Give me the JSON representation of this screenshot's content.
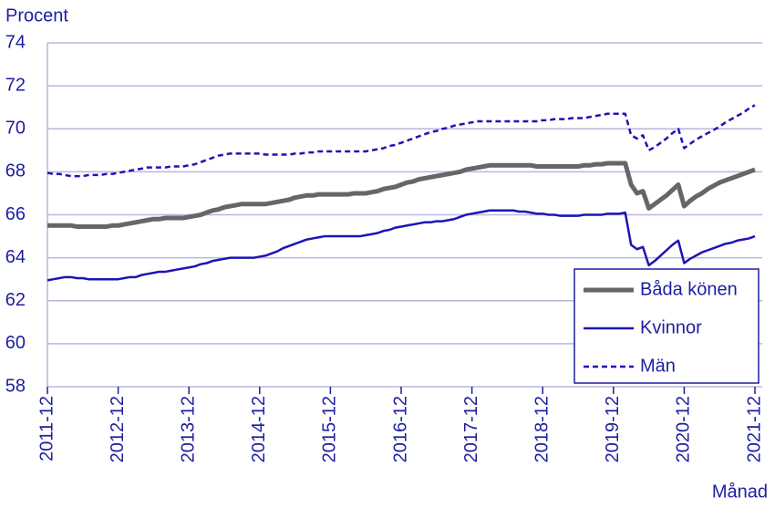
{
  "chart_data": {
    "type": "line",
    "y_label": "Procent",
    "x_label": "Månad",
    "categories": [
      "2011-12",
      null,
      null,
      null,
      null,
      null,
      null,
      null,
      null,
      null,
      null,
      null,
      "2012-12",
      null,
      null,
      null,
      null,
      null,
      null,
      null,
      null,
      null,
      null,
      null,
      "2013-12",
      null,
      null,
      null,
      null,
      null,
      null,
      null,
      null,
      null,
      null,
      null,
      "2014-12",
      null,
      null,
      null,
      null,
      null,
      null,
      null,
      null,
      null,
      null,
      null,
      "2015-12",
      null,
      null,
      null,
      null,
      null,
      null,
      null,
      null,
      null,
      null,
      null,
      "2016-12",
      null,
      null,
      null,
      null,
      null,
      null,
      null,
      null,
      null,
      null,
      null,
      "2017-12",
      null,
      null,
      null,
      null,
      null,
      null,
      null,
      null,
      null,
      null,
      null,
      "2018-12",
      null,
      null,
      null,
      null,
      null,
      null,
      null,
      null,
      null,
      null,
      null,
      "2019-12",
      null,
      null,
      null,
      null,
      null,
      null,
      null,
      null,
      null,
      null,
      null,
      "2020-12",
      null,
      null,
      null,
      null,
      null,
      null,
      null,
      null,
      null,
      null,
      null,
      "2021-12"
    ],
    "series": [
      {
        "name": "Båda könen",
        "color": "#666666",
        "width": 5,
        "dashed": false,
        "values": [
          65.5,
          65.5,
          65.5,
          65.5,
          65.5,
          65.45,
          65.45,
          65.45,
          65.45,
          65.45,
          65.45,
          65.5,
          65.5,
          65.55,
          65.6,
          65.65,
          65.7,
          65.75,
          65.8,
          65.8,
          65.85,
          65.85,
          65.85,
          65.85,
          65.9,
          65.95,
          66.0,
          66.1,
          66.2,
          66.25,
          66.35,
          66.4,
          66.45,
          66.5,
          66.5,
          66.5,
          66.5,
          66.5,
          66.55,
          66.6,
          66.65,
          66.7,
          66.8,
          66.85,
          66.9,
          66.9,
          66.95,
          66.95,
          66.95,
          66.95,
          66.95,
          66.95,
          67.0,
          67.0,
          67.0,
          67.05,
          67.1,
          67.2,
          67.25,
          67.3,
          67.4,
          67.5,
          67.55,
          67.65,
          67.7,
          67.75,
          67.8,
          67.85,
          67.9,
          67.95,
          68.0,
          68.1,
          68.15,
          68.2,
          68.25,
          68.3,
          68.3,
          68.3,
          68.3,
          68.3,
          68.3,
          68.3,
          68.3,
          68.25,
          68.25,
          68.25,
          68.25,
          68.25,
          68.25,
          68.25,
          68.25,
          68.3,
          68.3,
          68.35,
          68.35,
          68.4,
          68.4,
          68.4,
          68.4,
          67.4,
          67.0,
          67.1,
          66.3,
          66.5,
          66.7,
          66.9,
          67.15,
          67.4,
          66.4,
          66.65,
          66.85,
          67.0,
          67.2,
          67.35,
          67.5,
          67.6,
          67.7,
          67.8,
          67.9,
          68.0,
          68.1
        ]
      },
      {
        "name": "Kvinnor",
        "color": "#1e14b4",
        "width": 2.5,
        "dashed": false,
        "values": [
          62.95,
          63.0,
          63.05,
          63.1,
          63.1,
          63.05,
          63.05,
          63.0,
          63.0,
          63.0,
          63.0,
          63.0,
          63.0,
          63.05,
          63.1,
          63.1,
          63.2,
          63.25,
          63.3,
          63.35,
          63.35,
          63.4,
          63.45,
          63.5,
          63.55,
          63.6,
          63.7,
          63.75,
          63.85,
          63.9,
          63.95,
          64.0,
          64.0,
          64.0,
          64.0,
          64.0,
          64.05,
          64.1,
          64.2,
          64.3,
          64.45,
          64.55,
          64.65,
          64.75,
          64.85,
          64.9,
          64.95,
          65.0,
          65.0,
          65.0,
          65.0,
          65.0,
          65.0,
          65.0,
          65.05,
          65.1,
          65.15,
          65.25,
          65.3,
          65.4,
          65.45,
          65.5,
          65.55,
          65.6,
          65.65,
          65.65,
          65.7,
          65.7,
          65.75,
          65.8,
          65.9,
          66.0,
          66.05,
          66.1,
          66.15,
          66.2,
          66.2,
          66.2,
          66.2,
          66.2,
          66.15,
          66.15,
          66.1,
          66.05,
          66.05,
          66.0,
          66.0,
          65.95,
          65.95,
          65.95,
          65.95,
          66.0,
          66.0,
          66.0,
          66.0,
          66.05,
          66.05,
          66.05,
          66.1,
          64.6,
          64.4,
          64.5,
          63.65,
          63.85,
          64.1,
          64.35,
          64.6,
          64.8,
          63.75,
          63.95,
          64.1,
          64.25,
          64.35,
          64.45,
          64.55,
          64.65,
          64.7,
          64.8,
          64.85,
          64.9,
          65.0
        ]
      },
      {
        "name": "Män",
        "color": "#1e14b4",
        "width": 2.5,
        "dashed": true,
        "values": [
          67.95,
          67.9,
          67.9,
          67.85,
          67.8,
          67.8,
          67.8,
          67.85,
          67.85,
          67.85,
          67.9,
          67.9,
          67.95,
          68.0,
          68.05,
          68.1,
          68.15,
          68.2,
          68.2,
          68.2,
          68.2,
          68.25,
          68.25,
          68.25,
          68.3,
          68.35,
          68.45,
          68.55,
          68.65,
          68.75,
          68.8,
          68.85,
          68.85,
          68.85,
          68.85,
          68.85,
          68.85,
          68.8,
          68.8,
          68.8,
          68.8,
          68.8,
          68.85,
          68.85,
          68.9,
          68.9,
          68.95,
          68.95,
          68.95,
          68.95,
          68.95,
          68.95,
          68.95,
          68.95,
          68.95,
          69.0,
          69.05,
          69.1,
          69.2,
          69.25,
          69.35,
          69.45,
          69.55,
          69.65,
          69.75,
          69.85,
          69.9,
          70.0,
          70.05,
          70.15,
          70.2,
          70.25,
          70.3,
          70.35,
          70.35,
          70.35,
          70.35,
          70.35,
          70.35,
          70.35,
          70.35,
          70.35,
          70.35,
          70.35,
          70.4,
          70.4,
          70.45,
          70.45,
          70.45,
          70.5,
          70.5,
          70.5,
          70.55,
          70.6,
          70.65,
          70.7,
          70.7,
          70.7,
          70.7,
          69.7,
          69.55,
          69.7,
          69.0,
          69.15,
          69.35,
          69.55,
          69.8,
          70.0,
          69.1,
          69.3,
          69.5,
          69.65,
          69.8,
          69.95,
          70.1,
          70.3,
          70.45,
          70.6,
          70.75,
          70.95,
          71.1
        ]
      }
    ],
    "ylim": [
      58,
      74
    ],
    "yticks": [
      58,
      60,
      62,
      64,
      66,
      68,
      70,
      72,
      74
    ],
    "grid": true,
    "legend": "lower right"
  }
}
